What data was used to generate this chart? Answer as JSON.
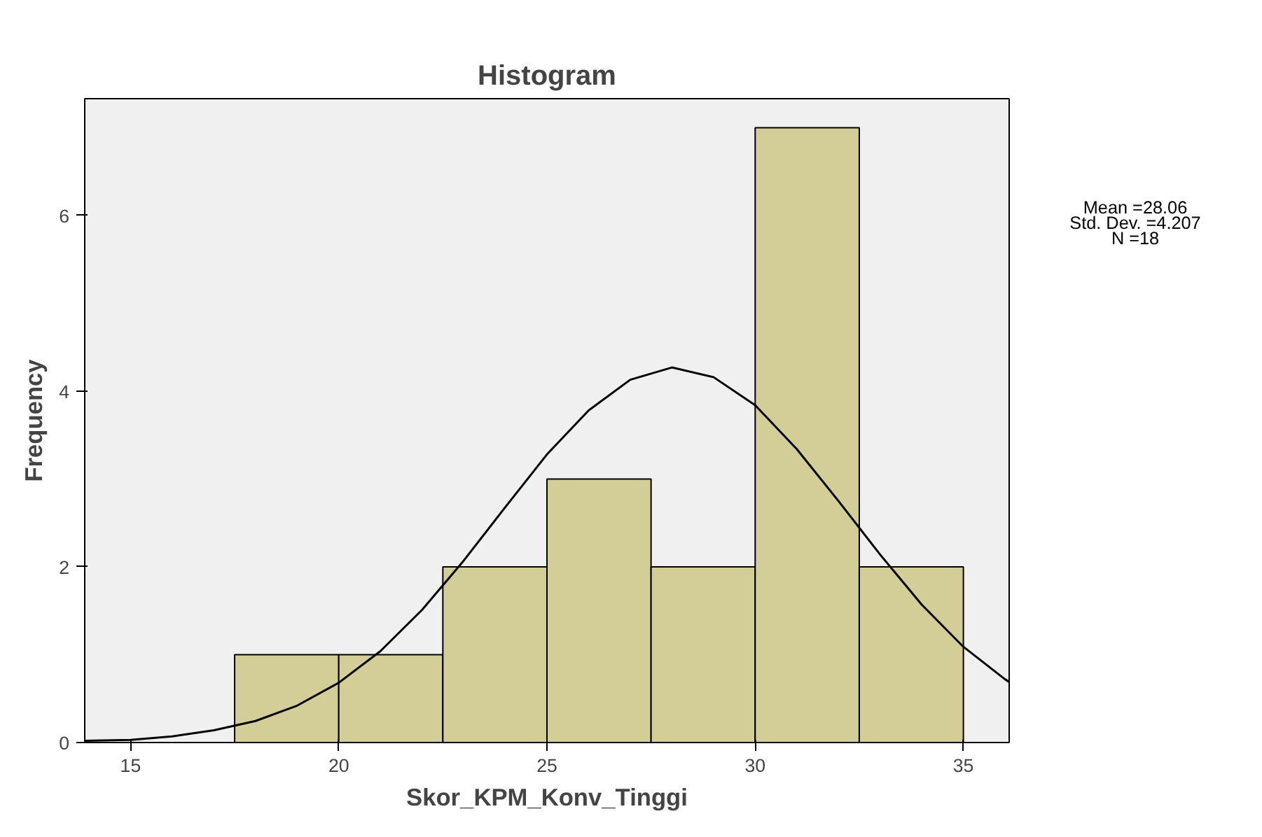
{
  "chart_data": {
    "type": "histogram",
    "title": "Histogram",
    "xlabel": "Skor_KPM_Konv_Tinggi",
    "ylabel": "Frequency",
    "bins": [
      17.5,
      20,
      22.5,
      25,
      27.5,
      30,
      32.5,
      35
    ],
    "values": [
      1,
      1,
      2,
      3,
      2,
      7,
      2
    ],
    "color": "#d3ce98",
    "xlim": [
      13.9,
      36.1
    ],
    "xticks": [
      15,
      20,
      25,
      30,
      35
    ],
    "ylim": [
      0,
      7.33
    ],
    "yticks": [
      0,
      2,
      4,
      6
    ],
    "grid": false,
    "series": [
      {
        "type": "line",
        "color": "#000000",
        "x": [
          13.9,
          15,
          16,
          17,
          18,
          19,
          20,
          21,
          22,
          23,
          24,
          25,
          26,
          27,
          28,
          29,
          30,
          31,
          32,
          33,
          34,
          35,
          36,
          36.1
        ],
        "values": [
          0.02,
          0.03,
          0.07,
          0.14,
          0.245,
          0.42,
          0.68,
          1.04,
          1.51,
          2.07,
          2.68,
          3.28,
          3.78,
          4.13,
          4.27,
          4.16,
          3.84,
          3.34,
          2.75,
          2.14,
          1.57,
          1.09,
          0.72,
          0.69
        ]
      }
    ],
    "annotations": [
      "Mean =28.06",
      "Std. Dev. =4.207",
      "N =18"
    ]
  }
}
